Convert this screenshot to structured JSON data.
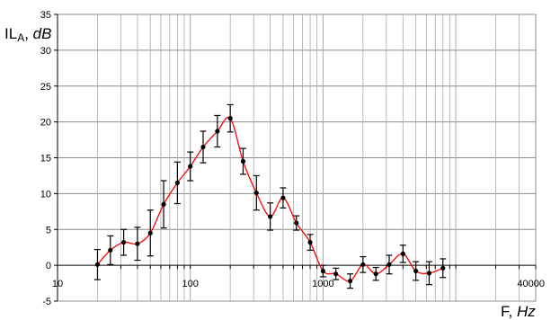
{
  "chart_data": {
    "type": "line",
    "x_scale": "log",
    "xlim": [
      10,
      40000
    ],
    "ylim": [
      -5,
      35
    ],
    "grid": true,
    "xlabel": {
      "main": "F, ",
      "unit": "Hz"
    },
    "ylabel": {
      "main": "IL",
      "sub": "A",
      "sep": ", ",
      "unit": "dB"
    },
    "x_tick_labels": [
      "10",
      "100",
      "1000",
      "40000"
    ],
    "y_tick_labels": [
      "-5",
      "0",
      "5",
      "10",
      "15",
      "20",
      "25",
      "30",
      "35"
    ],
    "series": [
      {
        "color": "#ff0000",
        "marker_color": "#000000",
        "points": [
          {
            "x": 20,
            "y": 0.1,
            "err": 2.1
          },
          {
            "x": 25,
            "y": 2.1,
            "err": 2.0
          },
          {
            "x": 31.5,
            "y": 3.2,
            "err": 1.8
          },
          {
            "x": 40,
            "y": 3.0,
            "err": 2.3
          },
          {
            "x": 50,
            "y": 4.5,
            "err": 3.2
          },
          {
            "x": 63,
            "y": 8.5,
            "err": 3.3
          },
          {
            "x": 80,
            "y": 11.5,
            "err": 2.9
          },
          {
            "x": 100,
            "y": 13.8,
            "err": 2.0
          },
          {
            "x": 125,
            "y": 16.5,
            "err": 2.2
          },
          {
            "x": 160,
            "y": 18.7,
            "err": 2.2
          },
          {
            "x": 200,
            "y": 20.5,
            "err": 1.9
          },
          {
            "x": 250,
            "y": 14.5,
            "err": 1.8
          },
          {
            "x": 315,
            "y": 10.1,
            "err": 2.4
          },
          {
            "x": 400,
            "y": 6.8,
            "err": 1.9
          },
          {
            "x": 500,
            "y": 9.4,
            "err": 1.4
          },
          {
            "x": 630,
            "y": 5.9,
            "err": 1.0
          },
          {
            "x": 800,
            "y": 3.2,
            "err": 1.1
          },
          {
            "x": 1000,
            "y": -0.8,
            "err": 0.8
          },
          {
            "x": 1250,
            "y": -1.2,
            "err": 0.8
          },
          {
            "x": 1600,
            "y": -2.2,
            "err": 1.0
          },
          {
            "x": 2000,
            "y": 0.1,
            "err": 1.1
          },
          {
            "x": 2500,
            "y": -1.2,
            "err": 0.9
          },
          {
            "x": 3150,
            "y": 0.1,
            "err": 1.3
          },
          {
            "x": 4000,
            "y": 1.6,
            "err": 1.2
          },
          {
            "x": 5000,
            "y": -0.8,
            "err": 1.3
          },
          {
            "x": 6300,
            "y": -1.1,
            "err": 1.6
          },
          {
            "x": 8000,
            "y": -0.4,
            "err": 1.3
          }
        ]
      }
    ]
  }
}
